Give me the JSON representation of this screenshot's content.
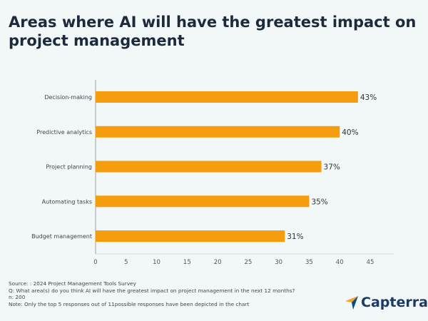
{
  "title": "Areas where AI will have the greatest impact on project management",
  "chart_data": {
    "type": "bar",
    "orientation": "horizontal",
    "categories": [
      "Decision-making",
      "Predictive analytics",
      "Project planning",
      "Automating tasks",
      "Budget management"
    ],
    "values": [
      43,
      40,
      37,
      35,
      31
    ],
    "data_labels": [
      "43%",
      "40%",
      "37%",
      "35%",
      "31%"
    ],
    "xlim": [
      0,
      45
    ],
    "xticks": [
      "0",
      "5",
      "10",
      "15",
      "20",
      "25",
      "30",
      "35",
      "40",
      "45"
    ],
    "grid": false,
    "bar_color": "#f59d0e"
  },
  "footer": {
    "source": "Source: : 2024 Project Management Tools Survey",
    "question": "Q: What area(s) do you think AI will have the greatest impact on project management in the next 12 months?",
    "n": "n: 200",
    "note": "Note: Only the top 5 responses out of 11possible responses have been depicted in the chart"
  },
  "logo": {
    "text": "Capterra",
    "colors": [
      "#ff9d28",
      "#68c5ed",
      "#044d80"
    ]
  }
}
